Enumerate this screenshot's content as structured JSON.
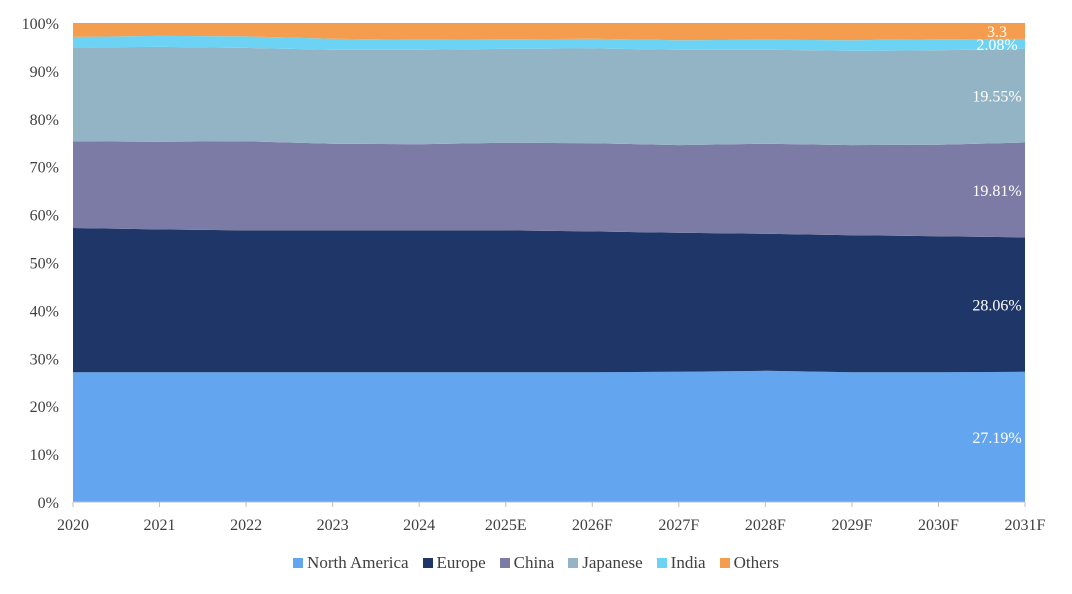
{
  "chart_data": {
    "type": "area",
    "stacked": true,
    "percent": true,
    "x": [
      "2020",
      "2021",
      "2022",
      "2023",
      "2024",
      "2025E",
      "2026F",
      "2027F",
      "2028F",
      "2029F",
      "2030F",
      "2031F"
    ],
    "ylim": [
      0,
      100
    ],
    "yticks": [
      "0%",
      "10%",
      "20%",
      "30%",
      "40%",
      "50%",
      "60%",
      "70%",
      "80%",
      "90%",
      "100%"
    ],
    "legend_position": "bottom",
    "grid": false,
    "series": [
      {
        "name": "North America",
        "color": "#63a5ee",
        "values": [
          27.1,
          27.1,
          27.1,
          27.1,
          27.1,
          27.1,
          27.1,
          27.2,
          27.4,
          27.1,
          27.1,
          27.19
        ]
      },
      {
        "name": "Europe",
        "color": "#1f3768",
        "values": [
          30.1,
          29.8,
          29.6,
          29.6,
          29.6,
          29.6,
          29.4,
          29.0,
          28.6,
          28.6,
          28.4,
          28.06
        ]
      },
      {
        "name": "China",
        "color": "#7b7ba6",
        "values": [
          18.1,
          18.3,
          18.6,
          18.1,
          18.0,
          18.3,
          18.4,
          18.3,
          18.8,
          18.8,
          19.1,
          19.81
        ]
      },
      {
        "name": "Japanese",
        "color": "#93b4c4",
        "values": [
          19.6,
          19.8,
          19.5,
          19.6,
          19.7,
          19.6,
          19.8,
          19.9,
          19.6,
          19.7,
          19.7,
          19.55
        ]
      },
      {
        "name": "India",
        "color": "#6dd3f5",
        "values": [
          2.2,
          2.3,
          2.4,
          2.3,
          2.1,
          2.0,
          2.0,
          2.0,
          2.1,
          2.2,
          2.3,
          2.08
        ]
      },
      {
        "name": "Others",
        "color": "#f59d4e",
        "values": [
          2.9,
          2.7,
          2.8,
          3.3,
          3.5,
          3.4,
          3.3,
          3.6,
          3.5,
          3.6,
          3.4,
          3.31
        ]
      }
    ],
    "data_labels": [
      "27.19%",
      "28.06%",
      "19.81%",
      "19.55%",
      "2.08%",
      "3.3"
    ]
  }
}
